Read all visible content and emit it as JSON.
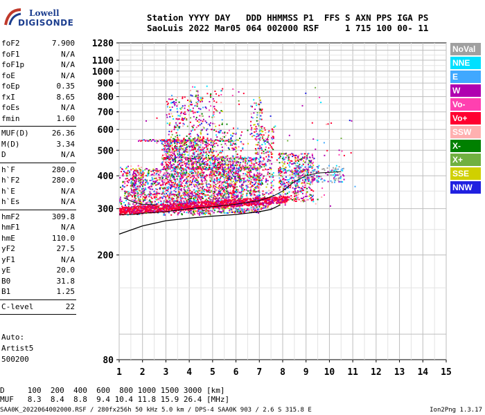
{
  "logo": {
    "line1": "Lowell",
    "line2": "DIGISONDE"
  },
  "header": {
    "line1": "Station YYYY DAY   DDD HHMMSS P1  FFS S AXN PPS IGA PS",
    "line2": "SaoLuis 2022 Mar05 064 002000 RSF     1 715 100 00- 11"
  },
  "params": {
    "group1": [
      {
        "label": "foF2",
        "value": "7.900"
      },
      {
        "label": "foF1",
        "value": "N/A"
      },
      {
        "label": "foF1p",
        "value": "N/A"
      },
      {
        "label": "foE",
        "value": "N/A"
      },
      {
        "label": "foEp",
        "value": "0.35"
      },
      {
        "label": "fxI",
        "value": "8.65"
      },
      {
        "label": "foEs",
        "value": "N/A"
      },
      {
        "label": "fmin",
        "value": "1.60"
      }
    ],
    "group2": [
      {
        "label": "MUF(D)",
        "value": "26.36"
      },
      {
        "label": "M(D)",
        "value": "3.34"
      },
      {
        "label": "D",
        "value": "N/A"
      }
    ],
    "group3": [
      {
        "label": "h`F",
        "value": "280.0"
      },
      {
        "label": "h`F2",
        "value": "280.0"
      },
      {
        "label": "h`E",
        "value": "N/A"
      },
      {
        "label": "h`Es",
        "value": "N/A"
      }
    ],
    "group4": [
      {
        "label": "hmF2",
        "value": "309.8"
      },
      {
        "label": "hmF1",
        "value": "N/A"
      },
      {
        "label": "hmE",
        "value": "110.0"
      },
      {
        "label": "yF2",
        "value": "27.5"
      },
      {
        "label": "yF1",
        "value": "N/A"
      },
      {
        "label": "yE",
        "value": "20.0"
      },
      {
        "label": "B0",
        "value": "31.8"
      },
      {
        "label": "B1",
        "value": "1.25"
      }
    ],
    "group5": [
      {
        "label": "C-level",
        "value": "22"
      }
    ]
  },
  "auto": {
    "line1": "Auto:",
    "line2": "Artist5",
    "line3": "500200"
  },
  "legend": [
    {
      "label": "NoVal",
      "color": "#a0a0a0"
    },
    {
      "label": "NNE",
      "color": "#00e0ff"
    },
    {
      "label": "E",
      "color": "#40a8ff"
    },
    {
      "label": "W",
      "color": "#b000b0"
    },
    {
      "label": "Vo-",
      "color": "#ff40b0"
    },
    {
      "label": "Vo+",
      "color": "#ff0030"
    },
    {
      "label": "SSW",
      "color": "#ffb0b0"
    },
    {
      "label": "X-",
      "color": "#008000"
    },
    {
      "label": "X+",
      "color": "#70b040"
    },
    {
      "label": "SSE",
      "color": "#d0d000"
    },
    {
      "label": "NNW",
      "color": "#2020e0"
    }
  ],
  "bottom_table": {
    "d_line": "D     100  200  400  600  800 1000 1500 3000 [km]",
    "muf_line": "MUF   8.3  8.4  8.8  9.4 10.4 11.8 15.9 26.4 [MHz]"
  },
  "footer": {
    "left": "SAA0K_2022064002000.RSF / 280fx256h 50 kHz 5.0 km / DPS-4 SAA0K 903 / 2.6 S 315.8 E",
    "right": "Ion2Png 1.3.17"
  },
  "chart_data": {
    "type": "scatter",
    "xlim": [
      1,
      15
    ],
    "ylim_log": [
      80,
      1280
    ],
    "x_ticks": [
      1,
      2,
      3,
      4,
      5,
      6,
      7,
      8,
      9,
      10,
      11,
      12,
      13,
      14,
      15
    ],
    "y_ticks": [
      80,
      200,
      300,
      400,
      500,
      600,
      700,
      800,
      900,
      1000,
      1100,
      1280
    ],
    "ordinary_trace": [
      [
        1.0,
        285
      ],
      [
        1.6,
        285
      ],
      [
        2.0,
        288
      ],
      [
        3.0,
        292
      ],
      [
        4.0,
        300
      ],
      [
        5.0,
        305
      ],
      [
        6.0,
        312
      ],
      [
        7.0,
        322
      ],
      [
        7.6,
        335
      ],
      [
        8.0,
        350
      ],
      [
        8.5,
        380
      ],
      [
        9.0,
        400
      ],
      [
        9.5,
        410
      ],
      [
        10.0,
        412
      ],
      [
        10.5,
        415
      ]
    ],
    "profile_curve": [
      [
        1.0,
        240
      ],
      [
        2.0,
        258
      ],
      [
        3.0,
        270
      ],
      [
        4.0,
        276
      ],
      [
        5.0,
        281
      ],
      [
        6.0,
        285
      ],
      [
        7.0,
        292
      ],
      [
        7.5,
        298
      ],
      [
        7.9,
        310
      ]
    ]
  }
}
